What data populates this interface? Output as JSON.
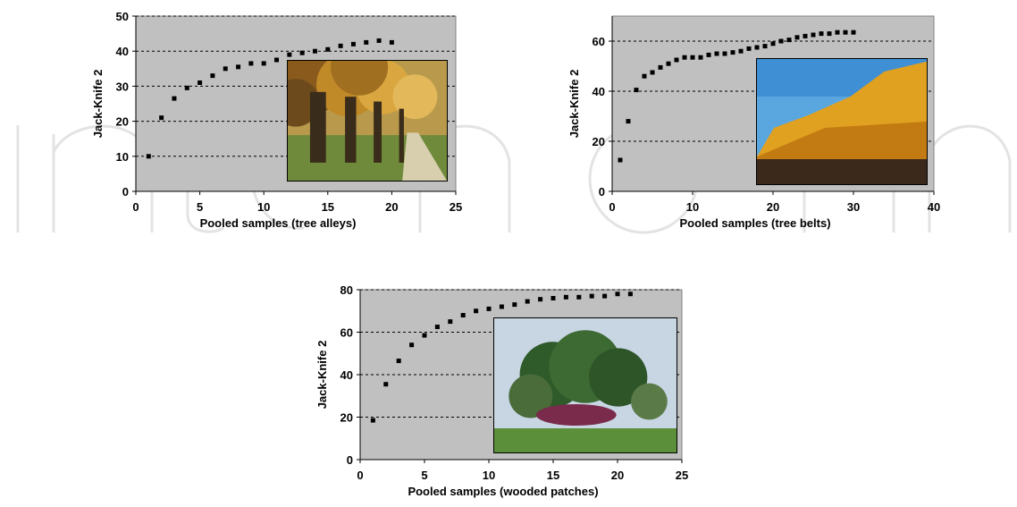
{
  "chart_data": [
    {
      "type": "scatter",
      "xlabel": "Pooled samples (tree alleys)",
      "ylabel": "Jack-Knife 2",
      "xlim": [
        0,
        25
      ],
      "ylim": [
        0,
        50
      ],
      "xticks": [
        0,
        5,
        10,
        15,
        20,
        25
      ],
      "yticks": [
        0,
        10,
        20,
        30,
        40,
        50
      ],
      "grid": "horizontal dashed",
      "inset_photo": "tree-alley-photo",
      "series": [
        {
          "x": [
            1,
            2,
            3,
            4,
            5,
            6,
            7,
            8,
            9,
            10,
            11,
            12,
            13,
            14,
            15,
            16,
            17,
            18,
            19,
            20
          ],
          "y": [
            10,
            21,
            26.5,
            29.5,
            31,
            33,
            35,
            35.5,
            36.5,
            36.5,
            37.5,
            39,
            39.5,
            40,
            40.5,
            41.5,
            42,
            42.5,
            43,
            42.5
          ]
        }
      ]
    },
    {
      "type": "scatter",
      "xlabel": "Pooled samples (tree belts)",
      "ylabel": "Jack-Knife 2",
      "xlim": [
        0,
        40
      ],
      "ylim": [
        0,
        70
      ],
      "xticks": [
        0,
        10,
        20,
        30,
        40
      ],
      "yticks": [
        0,
        20,
        40,
        60
      ],
      "grid": "horizontal dashed",
      "inset_photo": "tree-belt-photo",
      "series": [
        {
          "x": [
            1,
            2,
            3,
            4,
            5,
            6,
            7,
            8,
            9,
            10,
            11,
            12,
            13,
            14,
            15,
            16,
            17,
            18,
            19,
            20,
            21,
            22,
            23,
            24,
            25,
            26,
            27,
            28,
            29,
            30
          ],
          "y": [
            12.5,
            28,
            40.5,
            46,
            47.5,
            49.5,
            51,
            52.5,
            53.5,
            53.5,
            53.5,
            54.5,
            55,
            55,
            55.5,
            56,
            57,
            57.5,
            58,
            59,
            60,
            60.5,
            61.5,
            62,
            62.5,
            63,
            63,
            63.5,
            63.5,
            63.5
          ]
        }
      ]
    },
    {
      "type": "scatter",
      "xlabel": "Pooled samples (wooded patches)",
      "ylabel": "Jack-Knife 2",
      "xlim": [
        0,
        25
      ],
      "ylim": [
        0,
        80
      ],
      "xticks": [
        0,
        5,
        10,
        15,
        20,
        25
      ],
      "yticks": [
        0,
        20,
        40,
        60,
        80
      ],
      "grid": "horizontal dashed",
      "inset_photo": "wooded-patch-photo",
      "series": [
        {
          "x": [
            1,
            2,
            3,
            4,
            5,
            6,
            7,
            8,
            9,
            10,
            11,
            12,
            13,
            14,
            15,
            16,
            17,
            18,
            19,
            20,
            21
          ],
          "y": [
            18.5,
            35.5,
            46.5,
            54,
            58.5,
            62.5,
            65,
            68,
            70,
            71,
            72,
            73,
            74.5,
            75.5,
            76,
            76.5,
            76.5,
            77,
            77,
            78,
            78
          ]
        }
      ]
    }
  ]
}
